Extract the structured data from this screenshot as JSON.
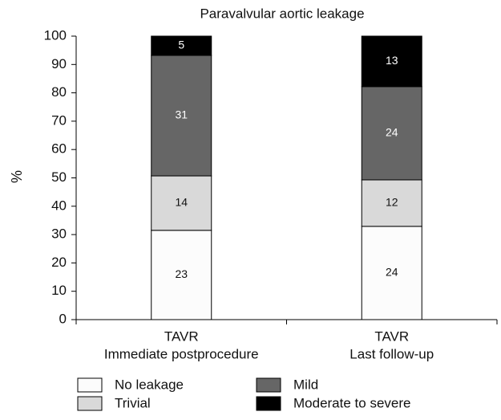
{
  "chart_data": {
    "type": "stacked-bar",
    "title": "Paravalvular aortic leakage",
    "y_label": "%",
    "categories": [
      [
        "TAVR",
        "Immediate postprocedure"
      ],
      [
        "TAVR",
        "Last follow-up"
      ]
    ],
    "series": [
      {
        "name": "No leakage",
        "color": "#fcfcfc",
        "values": [
          31.5,
          32.9
        ],
        "counts": [
          23,
          24
        ]
      },
      {
        "name": "Trivial",
        "color": "#d9d9d9",
        "values": [
          19.2,
          16.4
        ],
        "counts": [
          14,
          12
        ]
      },
      {
        "name": "Mild",
        "color": "#666666",
        "values": [
          42.5,
          32.9
        ],
        "counts": [
          31,
          24
        ]
      },
      {
        "name": "Moderate to severe",
        "color": "#000000",
        "values": [
          6.8,
          17.8
        ],
        "counts": [
          5,
          13
        ]
      }
    ],
    "ylim": [
      0,
      100
    ],
    "yticks": [
      0,
      10,
      20,
      30,
      40,
      50,
      60,
      70,
      80,
      90,
      100
    ]
  }
}
